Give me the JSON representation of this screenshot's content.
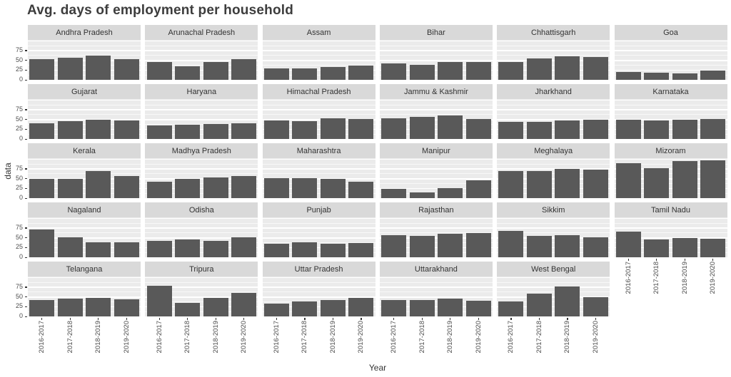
{
  "colors": {
    "bar": "#595959",
    "panel_background": "#ebebeb",
    "strip_background": "#d9d9d9",
    "gridline": "#ffffff",
    "title_text": "#3d3d3d",
    "axis_text": "#4d4d4d",
    "tick_mark": "#333333",
    "page_background": "#ffffff"
  },
  "chart_data": {
    "type": "bar",
    "title": "Avg. days of employment per household",
    "xlabel": "Year",
    "ylabel": "data",
    "x_categories": [
      "2016-2017",
      "2017-2018",
      "2018-2019",
      "2019-2020"
    ],
    "y_ticks": [
      0,
      25,
      50,
      75
    ],
    "ylim": [
      0,
      100
    ],
    "grid": "on",
    "layout_hint": "facet grid 5 rows x 6 columns, shared axes, y labels on first column, x labels under lowest facet of each column",
    "facets": [
      {
        "state": "Andhra Pradesh",
        "values": [
          52,
          56,
          61,
          52
        ]
      },
      {
        "state": "Arunachal Pradesh",
        "values": [
          44,
          33,
          45,
          52
        ]
      },
      {
        "state": "Assam",
        "values": [
          29,
          29,
          32,
          36
        ]
      },
      {
        "state": "Bihar",
        "values": [
          41,
          38,
          45,
          44
        ]
      },
      {
        "state": "Chhattisgarh",
        "values": [
          44,
          54,
          59,
          58
        ]
      },
      {
        "state": "Goa",
        "values": [
          20,
          18,
          15,
          22
        ]
      },
      {
        "state": "Gujarat",
        "values": [
          40,
          44,
          48,
          47
        ]
      },
      {
        "state": "Haryana",
        "values": [
          33,
          36,
          38,
          40
        ]
      },
      {
        "state": "Himachal Pradesh",
        "values": [
          46,
          44,
          53,
          51
        ]
      },
      {
        "state": "Jammu & Kashmir",
        "values": [
          52,
          56,
          60,
          50
        ]
      },
      {
        "state": "Jharkhand",
        "values": [
          43,
          43,
          46,
          49
        ]
      },
      {
        "state": "Karnataka",
        "values": [
          49,
          47,
          48,
          50
        ]
      },
      {
        "state": "Kerala",
        "values": [
          48,
          49,
          68,
          56
        ]
      },
      {
        "state": "Madhya Pradesh",
        "values": [
          42,
          48,
          53,
          55
        ]
      },
      {
        "state": "Maharashtra",
        "values": [
          51,
          51,
          49,
          42
        ]
      },
      {
        "state": "Manipur",
        "values": [
          22,
          13,
          24,
          45
        ]
      },
      {
        "state": "Meghalaya",
        "values": [
          69,
          68,
          74,
          73
        ]
      },
      {
        "state": "Mizoram",
        "values": [
          88,
          76,
          94,
          96
        ]
      },
      {
        "state": "Nagaland",
        "values": [
          70,
          51,
          37,
          37
        ]
      },
      {
        "state": "Odisha",
        "values": [
          42,
          45,
          42,
          51
        ]
      },
      {
        "state": "Punjab",
        "values": [
          33,
          37,
          34,
          36
        ]
      },
      {
        "state": "Rajasthan",
        "values": [
          56,
          54,
          59,
          61
        ]
      },
      {
        "state": "Sikkim",
        "values": [
          67,
          54,
          55,
          51
        ]
      },
      {
        "state": "Tamil Nadu",
        "values": [
          65,
          44,
          49,
          46
        ]
      },
      {
        "state": "Telangana",
        "values": [
          41,
          45,
          47,
          43
        ]
      },
      {
        "state": "Tripura",
        "values": [
          78,
          34,
          46,
          59
        ]
      },
      {
        "state": "Uttar Pradesh",
        "values": [
          32,
          38,
          42,
          46
        ]
      },
      {
        "state": "Uttarakhand",
        "values": [
          42,
          42,
          44,
          40
        ]
      },
      {
        "state": "West Bengal",
        "values": [
          38,
          58,
          76,
          48
        ]
      }
    ]
  }
}
